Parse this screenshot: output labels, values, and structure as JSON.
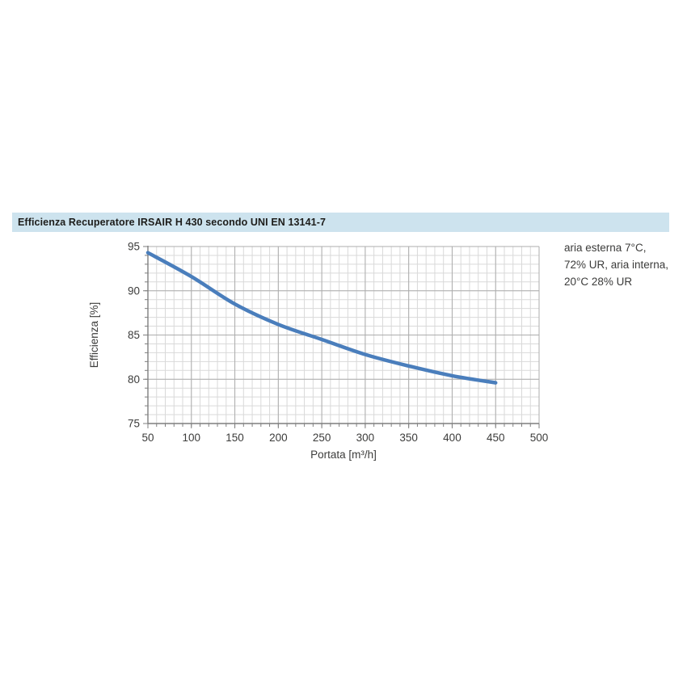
{
  "title": "Efficienza Recuperatore IRSAIR H 430 secondo UNI EN 13141-7",
  "annotation": {
    "lines": [
      "aria esterna 7°C,",
      "72% UR, aria interna,",
      "20°C 28% UR"
    ]
  },
  "colors": {
    "title_band": "#cde3ee",
    "title_text": "#1d1d1b",
    "curve": "#4a7ebc",
    "grid_minor": "#d9d9d9",
    "grid_major": "#adadad",
    "axis": "#7f7f7f",
    "tick_text": "#3c3c3b"
  },
  "chart_data": {
    "type": "line",
    "title": "Efficienza Recuperatore IRSAIR H 430 secondo UNI EN 13141-7",
    "xlabel": "Portata [m³/h]",
    "ylabel": "Efficienza [%]",
    "xlim": [
      50,
      500
    ],
    "ylim": [
      75,
      95
    ],
    "x_ticks": [
      50,
      100,
      150,
      200,
      250,
      300,
      350,
      400,
      450,
      500
    ],
    "y_ticks": [
      75,
      80,
      85,
      90,
      95
    ],
    "x_minor_step": 10,
    "y_minor_step": 1,
    "x_major_step": 50,
    "y_major_step": 5,
    "grid": "both",
    "legend": "none",
    "series": [
      {
        "name": "Efficienza recuperatore",
        "x": [
          50,
          100,
          150,
          200,
          250,
          300,
          350,
          400,
          450
        ],
        "y": [
          94.3,
          91.6,
          88.5,
          86.2,
          84.5,
          82.8,
          81.5,
          80.4,
          79.6
        ]
      }
    ]
  }
}
